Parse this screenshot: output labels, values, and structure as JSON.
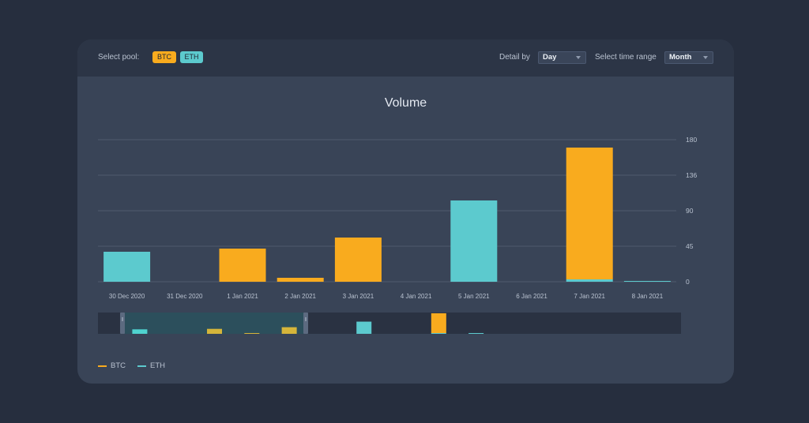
{
  "controls": {
    "select_pool_label": "Select pool:",
    "pools": [
      {
        "label": "BTC",
        "color": "#f9ab1e"
      },
      {
        "label": "ETH",
        "color": "#5ccace"
      }
    ],
    "detail_label": "Detail by",
    "detail_value": "Day",
    "range_label": "Select time range",
    "range_value": "Month"
  },
  "chart_data": {
    "type": "bar",
    "title": "Volume",
    "categories": [
      "30 Dec 2020",
      "31 Dec 2020",
      "1 Jan 2021",
      "2 Jan 2021",
      "3 Jan 2021",
      "4 Jan 2021",
      "5 Jan 2021",
      "6 Jan 2021",
      "7 Jan 2021",
      "8 Jan 2021"
    ],
    "y_ticks": [
      "180",
      "136",
      "90",
      "45",
      "0"
    ],
    "ylim": [
      0,
      180
    ],
    "stacked": true,
    "series": [
      {
        "name": "BTC",
        "color": "#f9ab1e",
        "values": [
          0,
          0,
          42,
          5,
          56,
          0,
          0,
          0,
          167,
          0
        ]
      },
      {
        "name": "ETH",
        "color": "#5ccace",
        "values": [
          38,
          0,
          0,
          0,
          0,
          0,
          103,
          0,
          3,
          1
        ]
      }
    ],
    "legend_position": "bottom-left",
    "grid": true
  }
}
